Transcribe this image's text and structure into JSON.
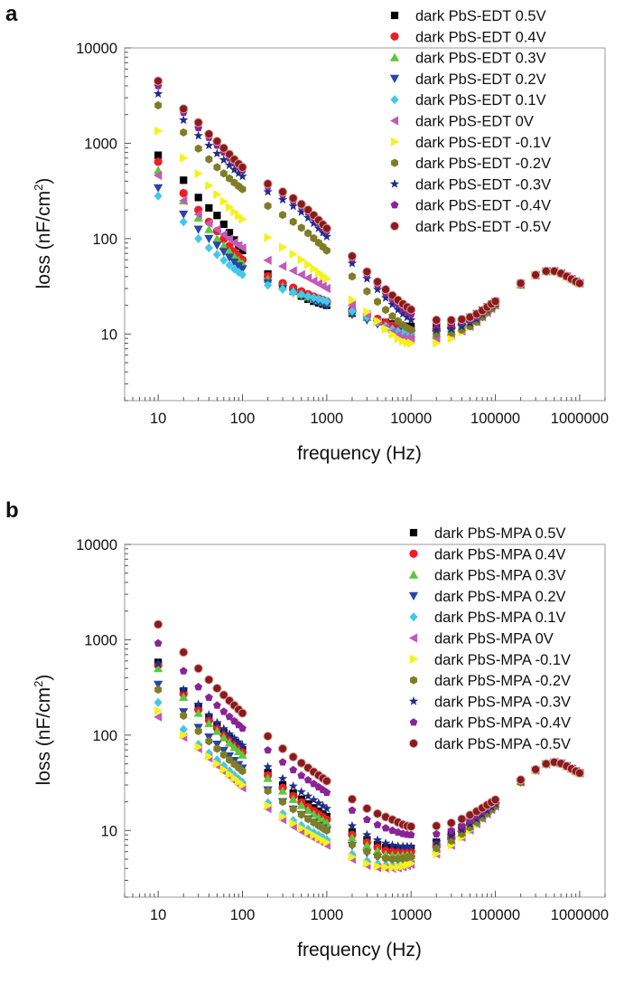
{
  "colors": {
    "s0.5": "#000000",
    "s0.4": "#ee1c24",
    "s0.3": "#5cc83a",
    "s0.2": "#2b44a8",
    "s0.1": "#45c8e8",
    "s0": "#c15ab9",
    "s-0.1": "#f4f21a",
    "s-0.2": "#7f7d27",
    "s-0.3": "#1f2e86",
    "s-0.4": "#8a2398",
    "s-0.5": "#8b1a1a"
  },
  "chart_data": [
    {
      "type": "scatter",
      "panel_label": "a",
      "xlabel": "frequency (Hz)",
      "ylabel": "loss (nF/cm",
      "ylabel_sup": "2",
      "ylabel_close": ")",
      "x_scale": "log",
      "y_scale": "log",
      "xlim": [
        4,
        2000000
      ],
      "ylim": [
        2,
        10000
      ],
      "xticks": [
        "10",
        "100",
        "1000",
        "10000",
        "100000",
        "1000000"
      ],
      "yticks": [
        "10",
        "100",
        "1000",
        "10000"
      ],
      "legend_position": "top-right",
      "grid": false,
      "series": [
        {
          "name": "dark PbS-EDT 0.5V",
          "marker": "square",
          "color_key": "s0.5",
          "x": [
            10,
            20,
            30,
            40,
            50,
            100,
            500,
            1000,
            3000,
            10000,
            20000,
            50000,
            100000,
            200000,
            450000,
            1000000
          ],
          "y": [
            750,
            410,
            270,
            210,
            175,
            75,
            25,
            20,
            15,
            12,
            12,
            15,
            22,
            34,
            46,
            34
          ]
        },
        {
          "name": "dark PbS-EDT 0.4V",
          "marker": "circle",
          "color_key": "s0.4",
          "x": [
            10,
            20,
            30,
            40,
            50,
            100,
            500,
            1000,
            3000,
            10000,
            20000,
            50000,
            100000,
            200000,
            450000,
            1000000
          ],
          "y": [
            640,
            300,
            200,
            150,
            120,
            60,
            28,
            22,
            16,
            11,
            11,
            14,
            21,
            33,
            46,
            34
          ]
        },
        {
          "name": "dark PbS-EDT 0.3V",
          "marker": "triangle-up",
          "color_key": "s0.3",
          "x": [
            10,
            20,
            30,
            40,
            50,
            100,
            500,
            1000,
            3000,
            10000,
            20000,
            50000,
            100000,
            200000,
            450000,
            1000000
          ],
          "y": [
            520,
            250,
            165,
            125,
            100,
            55,
            26,
            21,
            15,
            10,
            10,
            13,
            21,
            33,
            46,
            34
          ]
        },
        {
          "name": "dark PbS-EDT 0.2V",
          "marker": "triangle-down",
          "color_key": "s0.2",
          "x": [
            10,
            20,
            30,
            40,
            50,
            100,
            500,
            1000,
            3000,
            10000,
            20000,
            50000,
            100000,
            200000,
            450000,
            1000000
          ],
          "y": [
            340,
            180,
            125,
            100,
            85,
            48,
            25,
            20,
            14,
            10,
            10,
            13,
            21,
            33,
            46,
            34
          ]
        },
        {
          "name": "dark PbS-EDT 0.1V",
          "marker": "diamond",
          "color_key": "s0.1",
          "x": [
            10,
            20,
            30,
            40,
            50,
            100,
            500,
            1000,
            3000,
            10000,
            20000,
            50000,
            100000,
            200000,
            450000,
            1000000
          ],
          "y": [
            280,
            150,
            100,
            80,
            68,
            42,
            26,
            22,
            15,
            10,
            10,
            13,
            21,
            33,
            46,
            34
          ]
        },
        {
          "name": "dark PbS-EDT 0V",
          "marker": "triangle-left",
          "color_key": "s0",
          "x": [
            10,
            20,
            30,
            40,
            50,
            100,
            500,
            1000,
            3000,
            10000,
            20000,
            50000,
            100000,
            200000,
            450000,
            1000000
          ],
          "y": [
            460,
            250,
            180,
            145,
            125,
            80,
            42,
            30,
            16,
            9,
            9,
            12,
            20,
            33,
            46,
            34
          ]
        },
        {
          "name": "dark PbS-EDT -0.1V",
          "marker": "triangle-right",
          "color_key": "s-0.1",
          "x": [
            10,
            20,
            30,
            40,
            50,
            100,
            500,
            1000,
            3000,
            10000,
            20000,
            50000,
            100000,
            200000,
            450000,
            1000000
          ],
          "y": [
            1350,
            700,
            480,
            360,
            290,
            160,
            60,
            38,
            17,
            8,
            8,
            12,
            20,
            33,
            46,
            34
          ]
        },
        {
          "name": "dark PbS-EDT -0.2V",
          "marker": "hexagon",
          "color_key": "s-0.2",
          "x": [
            10,
            20,
            30,
            40,
            50,
            100,
            500,
            1000,
            3000,
            10000,
            20000,
            50000,
            100000,
            200000,
            450000,
            1000000
          ],
          "y": [
            2500,
            1300,
            880,
            680,
            560,
            330,
            130,
            75,
            28,
            11,
            10,
            12,
            20,
            33,
            46,
            34
          ]
        },
        {
          "name": "dark PbS-EDT -0.3V",
          "marker": "star",
          "color_key": "s-0.3",
          "x": [
            10,
            20,
            30,
            40,
            50,
            100,
            500,
            1000,
            3000,
            10000,
            20000,
            50000,
            100000,
            200000,
            450000,
            1000000
          ],
          "y": [
            3300,
            1750,
            1200,
            950,
            780,
            450,
            190,
            105,
            38,
            14,
            11,
            13,
            21,
            33,
            46,
            34
          ]
        },
        {
          "name": "dark PbS-EDT -0.4V",
          "marker": "pentagon",
          "color_key": "s-0.4",
          "x": [
            10,
            20,
            30,
            40,
            50,
            100,
            500,
            1000,
            3000,
            10000,
            20000,
            50000,
            100000,
            200000,
            450000,
            1000000
          ],
          "y": [
            4000,
            2100,
            1450,
            1150,
            950,
            520,
            215,
            120,
            42,
            16,
            13,
            14,
            21,
            33,
            46,
            34
          ]
        },
        {
          "name": "dark PbS-EDT -0.5V",
          "marker": "circle-hollow",
          "color_key": "s-0.5",
          "x": [
            10,
            20,
            30,
            40,
            50,
            100,
            500,
            1000,
            3000,
            10000,
            20000,
            50000,
            100000,
            200000,
            450000,
            1000000
          ],
          "y": [
            4500,
            2300,
            1650,
            1250,
            1050,
            560,
            230,
            128,
            45,
            18,
            14,
            15,
            22,
            34,
            46,
            34
          ]
        }
      ]
    },
    {
      "type": "scatter",
      "panel_label": "b",
      "xlabel": "frequency (Hz)",
      "ylabel": "loss (nF/cm",
      "ylabel_sup": "2",
      "ylabel_close": ")",
      "x_scale": "log",
      "y_scale": "log",
      "xlim": [
        4,
        2000000
      ],
      "ylim": [
        2,
        10000
      ],
      "xticks": [
        "10",
        "100",
        "1000",
        "10000",
        "100000",
        "1000000"
      ],
      "yticks": [
        "10",
        "100",
        "1000",
        "10000"
      ],
      "legend_position": "top-right",
      "grid": false,
      "series": [
        {
          "name": "dark PbS-MPA 0.5V",
          "marker": "square",
          "color_key": "s0.5",
          "x": [
            10,
            20,
            30,
            50,
            100,
            300,
            1000,
            3000,
            6000,
            10000,
            30000,
            100000,
            200000,
            500000,
            1000000
          ],
          "y": [
            580,
            290,
            200,
            125,
            70,
            30,
            14,
            8,
            6.5,
            6.5,
            9,
            20,
            33,
            52,
            40
          ]
        },
        {
          "name": "dark PbS-MPA 0.4V",
          "marker": "circle",
          "color_key": "s0.4",
          "x": [
            10,
            20,
            30,
            50,
            100,
            300,
            1000,
            3000,
            6000,
            10000,
            30000,
            100000,
            200000,
            500000,
            1000000
          ],
          "y": [
            540,
            270,
            185,
            118,
            66,
            28,
            13,
            7.5,
            6,
            6,
            8.5,
            19,
            33,
            52,
            40
          ]
        },
        {
          "name": "dark PbS-MPA 0.3V",
          "marker": "triangle-up",
          "color_key": "s0.3",
          "x": [
            10,
            20,
            30,
            50,
            100,
            300,
            1000,
            3000,
            6000,
            10000,
            30000,
            100000,
            200000,
            500000,
            1000000
          ],
          "y": [
            500,
            250,
            170,
            110,
            62,
            26,
            12,
            7,
            5.5,
            5.5,
            8,
            19,
            33,
            52,
            40
          ]
        },
        {
          "name": "dark PbS-MPA 0.2V",
          "marker": "triangle-down",
          "color_key": "s0.2",
          "x": [
            10,
            20,
            30,
            50,
            100,
            300,
            1000,
            3000,
            6000,
            10000,
            30000,
            100000,
            200000,
            500000,
            1000000
          ],
          "y": [
            340,
            175,
            120,
            80,
            45,
            20,
            10,
            5.8,
            4.8,
            5,
            7.5,
            18,
            32,
            52,
            40
          ]
        },
        {
          "name": "dark PbS-MPA 0.1V",
          "marker": "diamond",
          "color_key": "s0.1",
          "x": [
            10,
            20,
            30,
            50,
            100,
            300,
            1000,
            3000,
            6000,
            10000,
            30000,
            100000,
            200000,
            500000,
            1000000
          ],
          "y": [
            220,
            115,
            80,
            55,
            32,
            15,
            8,
            4.8,
            4.3,
            4.6,
            7.2,
            18,
            32,
            52,
            40
          ]
        },
        {
          "name": "dark PbS-MPA 0V",
          "marker": "triangle-left",
          "color_key": "s0",
          "x": [
            10,
            20,
            30,
            50,
            100,
            300,
            1000,
            3000,
            6000,
            10000,
            30000,
            100000,
            200000,
            500000,
            1000000
          ],
          "y": [
            155,
            95,
            72,
            48,
            28,
            13,
            7,
            4.3,
            4,
            4.4,
            7,
            18,
            32,
            52,
            40
          ]
        },
        {
          "name": "dark PbS-MPA -0.1V",
          "marker": "triangle-right",
          "color_key": "s-0.1",
          "x": [
            10,
            20,
            30,
            50,
            100,
            300,
            1000,
            3000,
            6000,
            10000,
            30000,
            100000,
            200000,
            500000,
            1000000
          ],
          "y": [
            180,
            100,
            75,
            50,
            30,
            14,
            7.5,
            4.5,
            4.1,
            4.5,
            7,
            18,
            32,
            52,
            40
          ]
        },
        {
          "name": "dark PbS-MPA -0.2V",
          "marker": "hexagon",
          "color_key": "s-0.2",
          "x": [
            10,
            20,
            30,
            50,
            100,
            300,
            1000,
            3000,
            6000,
            10000,
            30000,
            100000,
            200000,
            500000,
            1000000
          ],
          "y": [
            300,
            160,
            110,
            72,
            42,
            20,
            10,
            6,
            5,
            5.3,
            7.8,
            18,
            32,
            52,
            40
          ]
        },
        {
          "name": "dark PbS-MPA -0.3V",
          "marker": "star",
          "color_key": "s-0.3",
          "x": [
            10,
            20,
            30,
            50,
            100,
            300,
            1000,
            3000,
            6000,
            10000,
            30000,
            100000,
            200000,
            500000,
            1000000
          ],
          "y": [
            560,
            300,
            210,
            135,
            78,
            35,
            17,
            9,
            7,
            6.8,
            8.8,
            19,
            33,
            52,
            40
          ]
        },
        {
          "name": "dark PbS-MPA -0.4V",
          "marker": "pentagon",
          "color_key": "s-0.4",
          "x": [
            10,
            20,
            30,
            50,
            100,
            300,
            1000,
            3000,
            6000,
            10000,
            30000,
            100000,
            200000,
            500000,
            1000000
          ],
          "y": [
            920,
            470,
            320,
            205,
            118,
            52,
            25,
            13,
            10,
            9,
            10,
            20,
            33,
            52,
            40
          ]
        },
        {
          "name": "dark PbS-MPA -0.5V",
          "marker": "circle-hollow",
          "color_key": "s-0.5",
          "x": [
            10,
            20,
            30,
            50,
            100,
            300,
            1000,
            3000,
            6000,
            10000,
            30000,
            100000,
            200000,
            500000,
            1000000
          ],
          "y": [
            1450,
            740,
            500,
            310,
            170,
            72,
            33,
            17,
            13,
            11,
            12,
            21,
            34,
            52,
            40
          ]
        }
      ]
    }
  ]
}
